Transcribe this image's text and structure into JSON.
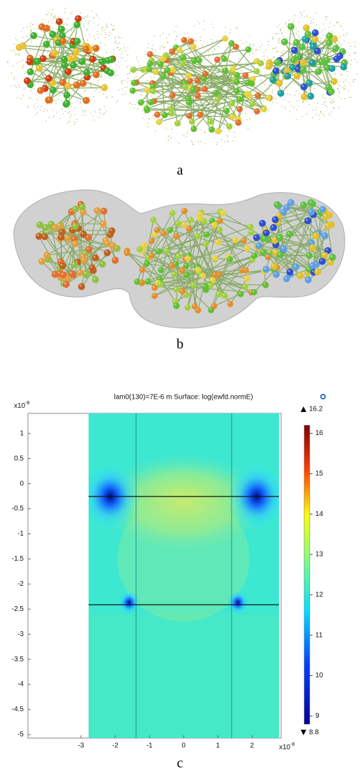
{
  "panels": [
    {
      "label": "a"
    },
    {
      "label": "b"
    }
  ],
  "chart_data": {
    "type": "heatmap",
    "title": "lam0(130)=7E-6 m  Surface: log(ewfd.normE)",
    "panel_label": "c",
    "xlim": [
      -4.55,
      2.85
    ],
    "ylim": [
      -5.07,
      1.4
    ],
    "xticks": [
      -3,
      -2,
      -1,
      0,
      1,
      2
    ],
    "yticks": [
      1,
      0.5,
      0,
      -0.5,
      -1,
      -1.5,
      -2,
      -2.5,
      -3,
      -3.5,
      -4,
      -4.5,
      -5
    ],
    "axis_multiplier": {
      "base": "x10",
      "exponent": "-8"
    },
    "colorbar": {
      "lim": [
        8.8,
        16.2
      ],
      "ticks": [
        9,
        10,
        11,
        12,
        13,
        14,
        15,
        16
      ],
      "max": 16.2,
      "min": 8.8
    }
  }
}
